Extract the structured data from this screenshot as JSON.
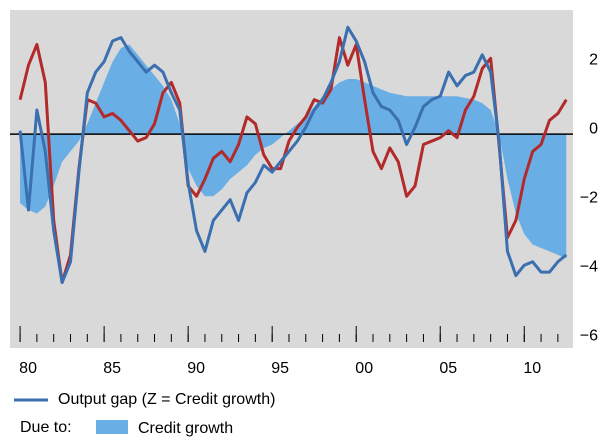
{
  "chart_data": {
    "type": "line",
    "x": [
      1980,
      1980.5,
      1981,
      1981.5,
      1982,
      1982.5,
      1983,
      1983.5,
      1984,
      1984.5,
      1985,
      1985.5,
      1986,
      1986.5,
      1987,
      1987.5,
      1988,
      1988.5,
      1989,
      1989.5,
      1990,
      1990.5,
      1991,
      1991.5,
      1992,
      1992.5,
      1993,
      1993.5,
      1994,
      1994.5,
      1995,
      1995.5,
      1996,
      1996.5,
      1997,
      1997.5,
      1998,
      1998.5,
      1999,
      1999.5,
      2000,
      2000.5,
      2001,
      2001.5,
      2002,
      2002.5,
      2003,
      2003.5,
      2004,
      2004.5,
      2005,
      2005.5,
      2006,
      2006.5,
      2007,
      2007.5,
      2008,
      2008.5,
      2009,
      2009.5,
      2010,
      2010.5,
      2011,
      2011.5,
      2012,
      2012.5
    ],
    "series": [
      {
        "name": "Credit growth",
        "color": "#6aaee6",
        "kind": "area",
        "values": [
          -2.0,
          -2.2,
          -2.3,
          -2.1,
          -1.5,
          -0.8,
          -0.5,
          -0.2,
          0.3,
          0.9,
          1.5,
          2.1,
          2.5,
          2.6,
          2.3,
          2.0,
          1.7,
          1.4,
          1.0,
          0.3,
          -1.0,
          -1.5,
          -1.8,
          -1.8,
          -1.6,
          -1.3,
          -1.1,
          -0.9,
          -0.6,
          -0.4,
          -0.3,
          -0.1,
          0.1,
          0.3,
          0.5,
          0.8,
          1.1,
          1.3,
          1.5,
          1.6,
          1.6,
          1.5,
          1.4,
          1.3,
          1.2,
          1.15,
          1.1,
          1.1,
          1.1,
          1.1,
          1.1,
          1.1,
          1.1,
          1.05,
          1.0,
          0.9,
          0.7,
          0.0,
          -1.3,
          -2.3,
          -2.9,
          -3.2,
          -3.3,
          -3.4,
          -3.5,
          -3.6
        ]
      },
      {
        "color": "#b22a2a",
        "kind": "line",
        "values": [
          1.0,
          2.0,
          2.6,
          1.5,
          -2.5,
          -4.3,
          -3.5,
          -1.0,
          1.0,
          0.9,
          0.5,
          0.6,
          0.4,
          0.1,
          -0.2,
          -0.1,
          0.3,
          1.2,
          1.5,
          0.9,
          -1.5,
          -1.8,
          -1.3,
          -0.7,
          -0.5,
          -0.8,
          -0.3,
          0.5,
          0.3,
          -0.6,
          -1.0,
          -1.0,
          -0.2,
          0.2,
          0.5,
          1.0,
          0.9,
          1.3,
          2.8,
          2.0,
          2.6,
          1.0,
          -0.5,
          -1.0,
          -0.4,
          -0.8,
          -1.8,
          -1.5,
          -0.3,
          -0.2,
          -0.1,
          0.1,
          -0.1,
          0.7,
          1.1,
          1.9,
          2.2,
          -0.3,
          -3.0,
          -2.5,
          -1.3,
          -0.5,
          -0.3,
          0.4,
          0.6,
          1.0
        ]
      },
      {
        "name": "Output gap (Z = Credit growth)",
        "color": "#3a6fb0",
        "kind": "line",
        "values": [
          0.1,
          -2.2,
          0.7,
          -0.5,
          -2.8,
          -4.3,
          -3.7,
          -1.1,
          1.2,
          1.8,
          2.1,
          2.7,
          2.8,
          2.4,
          2.1,
          1.8,
          2.0,
          1.8,
          1.2,
          0.7,
          -1.4,
          -2.8,
          -3.4,
          -2.5,
          -2.2,
          -1.9,
          -2.5,
          -1.7,
          -1.4,
          -0.9,
          -1.1,
          -0.8,
          -0.5,
          -0.2,
          0.2,
          0.7,
          1.0,
          1.5,
          2.1,
          3.1,
          2.7,
          2.1,
          1.2,
          0.8,
          0.7,
          0.4,
          -0.3,
          0.2,
          0.8,
          1.0,
          1.1,
          1.8,
          1.4,
          1.7,
          1.8,
          2.3,
          1.8,
          -0.2,
          -3.4,
          -4.1,
          -3.8,
          -3.7,
          -4.0,
          -4.0,
          -3.7,
          -3.5
        ]
      }
    ],
    "legend_prefix": "Due to:",
    "xlim": [
      1979.4,
      2012.9
    ],
    "xticks": [
      {
        "value": 1980,
        "label": "80"
      },
      {
        "value": 1985,
        "label": "85"
      },
      {
        "value": 1990,
        "label": "90"
      },
      {
        "value": 1995,
        "label": "95"
      },
      {
        "value": 2000,
        "label": "00"
      },
      {
        "value": 2005,
        "label": "05"
      },
      {
        "value": 2010,
        "label": "10"
      }
    ],
    "xminor_ticks": [
      1980,
      1981,
      1982,
      1983,
      1984,
      1985,
      1986,
      1987,
      1988,
      1989,
      1990,
      1991,
      1992,
      1993,
      1994,
      1995,
      1996,
      1997,
      1998,
      1999,
      2000,
      2001,
      2002,
      2003,
      2004,
      2005,
      2006,
      2007,
      2008,
      2009,
      2010,
      2011,
      2012
    ],
    "ylim": [
      -6.2,
      3.6
    ],
    "yticks": [
      2,
      0,
      {
        "value": -2,
        "label": "−2"
      },
      {
        "value": -4,
        "label": "−4"
      },
      {
        "value": -6,
        "label": "−6"
      }
    ]
  }
}
